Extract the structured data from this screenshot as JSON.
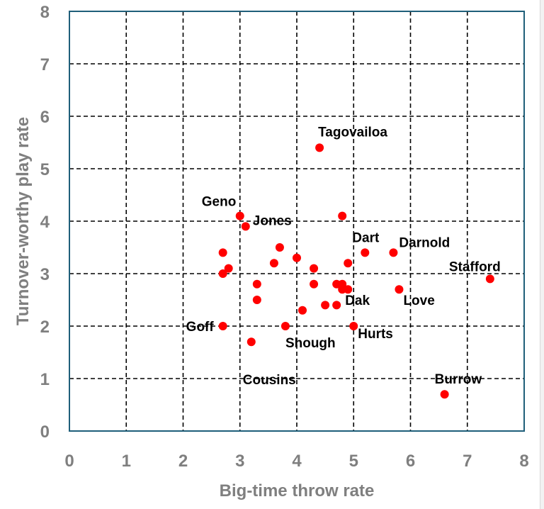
{
  "chart_data": {
    "type": "scatter",
    "title": "",
    "xlabel": "Big-time throw rate",
    "ylabel": "Turnover-worthy play rate",
    "xlim": [
      0,
      8
    ],
    "ylim": [
      0,
      8
    ],
    "xticks": [
      "0",
      "1",
      "2",
      "3",
      "4",
      "5",
      "6",
      "7",
      "8"
    ],
    "yticks": [
      "0",
      "1",
      "2",
      "3",
      "4",
      "5",
      "6",
      "7",
      "8"
    ],
    "grid": true,
    "point_color": "#ff0000",
    "frame_color": "#1f5f7a",
    "points": [
      {
        "label": "Tagovailoa",
        "x": 4.4,
        "y": 5.4
      },
      {
        "label": "Geno",
        "x": 3.0,
        "y": 4.1
      },
      {
        "label": "Jones",
        "x": 3.1,
        "y": 3.9
      },
      {
        "label": "",
        "x": 4.8,
        "y": 4.1
      },
      {
        "label": "Dart",
        "x": 5.2,
        "y": 3.4
      },
      {
        "label": "Darnold",
        "x": 5.7,
        "y": 3.4
      },
      {
        "label": "Stafford",
        "x": 7.4,
        "y": 2.9
      },
      {
        "label": "",
        "x": 2.7,
        "y": 3.4
      },
      {
        "label": "",
        "x": 2.7,
        "y": 3.0
      },
      {
        "label": "",
        "x": 2.8,
        "y": 3.1
      },
      {
        "label": "",
        "x": 3.7,
        "y": 3.5
      },
      {
        "label": "",
        "x": 3.6,
        "y": 3.2
      },
      {
        "label": "",
        "x": 4.0,
        "y": 3.3
      },
      {
        "label": "",
        "x": 4.3,
        "y": 3.1
      },
      {
        "label": "",
        "x": 4.9,
        "y": 3.2
      },
      {
        "label": "",
        "x": 3.3,
        "y": 2.8
      },
      {
        "label": "",
        "x": 4.3,
        "y": 2.8
      },
      {
        "label": "",
        "x": 4.7,
        "y": 2.8
      },
      {
        "label": "",
        "x": 4.8,
        "y": 2.8
      },
      {
        "label": "Dak",
        "x": 4.8,
        "y": 2.7
      },
      {
        "label": "",
        "x": 4.9,
        "y": 2.7
      },
      {
        "label": "Love",
        "x": 5.8,
        "y": 2.7
      },
      {
        "label": "",
        "x": 3.3,
        "y": 2.5
      },
      {
        "label": "",
        "x": 4.5,
        "y": 2.4
      },
      {
        "label": "",
        "x": 4.7,
        "y": 2.4
      },
      {
        "label": "",
        "x": 4.1,
        "y": 2.3
      },
      {
        "label": "Goff",
        "x": 2.7,
        "y": 2.0
      },
      {
        "label": "Shough",
        "x": 3.8,
        "y": 2.0
      },
      {
        "label": "Hurts",
        "x": 5.0,
        "y": 2.0
      },
      {
        "label": "Cousins",
        "x": 3.2,
        "y": 1.7
      },
      {
        "label": "Burrow",
        "x": 6.6,
        "y": 0.7
      }
    ]
  }
}
